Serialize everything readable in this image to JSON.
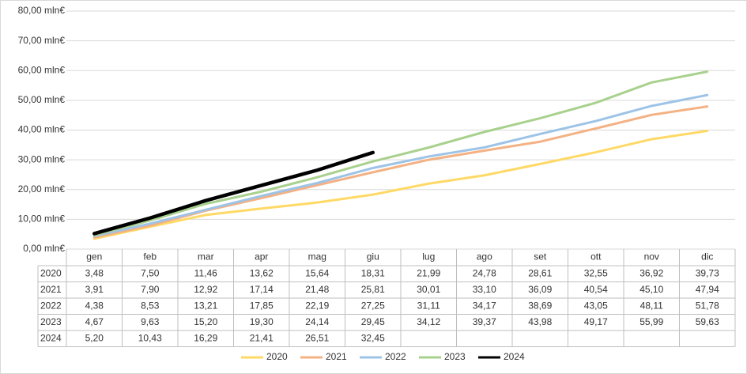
{
  "chart_data": {
    "type": "line",
    "categories": [
      "gen",
      "feb",
      "mar",
      "apr",
      "mag",
      "giu",
      "lug",
      "ago",
      "set",
      "ott",
      "nov",
      "dic"
    ],
    "ylim": [
      0,
      80
    ],
    "yticks": [
      {
        "value": 0,
        "label": "0,00 mln€"
      },
      {
        "value": 10,
        "label": "10,00 mln€"
      },
      {
        "value": 20,
        "label": "20,00 mln€"
      },
      {
        "value": 30,
        "label": "30,00 mln€"
      },
      {
        "value": 40,
        "label": "40,00 mln€"
      },
      {
        "value": 50,
        "label": "50,00 mln€"
      },
      {
        "value": 60,
        "label": "60,00 mln€"
      },
      {
        "value": 70,
        "label": "70,00 mln€"
      },
      {
        "value": 80,
        "label": "80,00 mln€"
      }
    ],
    "grid": true,
    "legend": "bottom",
    "series": [
      {
        "name": "2020",
        "color": "#ffd966",
        "values": [
          3.48,
          7.5,
          11.46,
          13.62,
          15.64,
          18.31,
          21.99,
          24.78,
          28.61,
          32.55,
          36.92,
          39.73
        ],
        "value_labels": [
          "3,48",
          "7,50",
          "11,46",
          "13,62",
          "15,64",
          "18,31",
          "21,99",
          "24,78",
          "28,61",
          "32,55",
          "36,92",
          "39,73"
        ]
      },
      {
        "name": "2021",
        "color": "#f4b183",
        "values": [
          3.91,
          7.9,
          12.92,
          17.14,
          21.48,
          25.81,
          30.01,
          33.1,
          36.09,
          40.54,
          45.1,
          47.94
        ],
        "value_labels": [
          "3,91",
          "7,90",
          "12,92",
          "17,14",
          "21,48",
          "25,81",
          "30,01",
          "33,10",
          "36,09",
          "40,54",
          "45,10",
          "47,94"
        ]
      },
      {
        "name": "2022",
        "color": "#9dc3e6",
        "values": [
          4.38,
          8.53,
          13.21,
          17.85,
          22.19,
          27.25,
          31.11,
          34.17,
          38.69,
          43.05,
          48.11,
          51.78
        ],
        "value_labels": [
          "4,38",
          "8,53",
          "13,21",
          "17,85",
          "22,19",
          "27,25",
          "31,11",
          "34,17",
          "38,69",
          "43,05",
          "48,11",
          "51,78"
        ]
      },
      {
        "name": "2023",
        "color": "#a9d18e",
        "values": [
          4.67,
          9.63,
          15.2,
          19.3,
          24.14,
          29.45,
          34.12,
          39.37,
          43.98,
          49.17,
          55.99,
          59.63
        ],
        "value_labels": [
          "4,67",
          "9,63",
          "15,20",
          "19,30",
          "24,14",
          "29,45",
          "34,12",
          "39,37",
          "43,98",
          "49,17",
          "55,99",
          "59,63"
        ]
      },
      {
        "name": "2024",
        "color": "#000000",
        "values": [
          5.2,
          10.43,
          16.29,
          21.41,
          26.51,
          32.45,
          null,
          null,
          null,
          null,
          null,
          null
        ],
        "value_labels": [
          "5,20",
          "10,43",
          "16,29",
          "21,41",
          "26,51",
          "32,45",
          null,
          null,
          null,
          null,
          null,
          null
        ]
      }
    ]
  }
}
